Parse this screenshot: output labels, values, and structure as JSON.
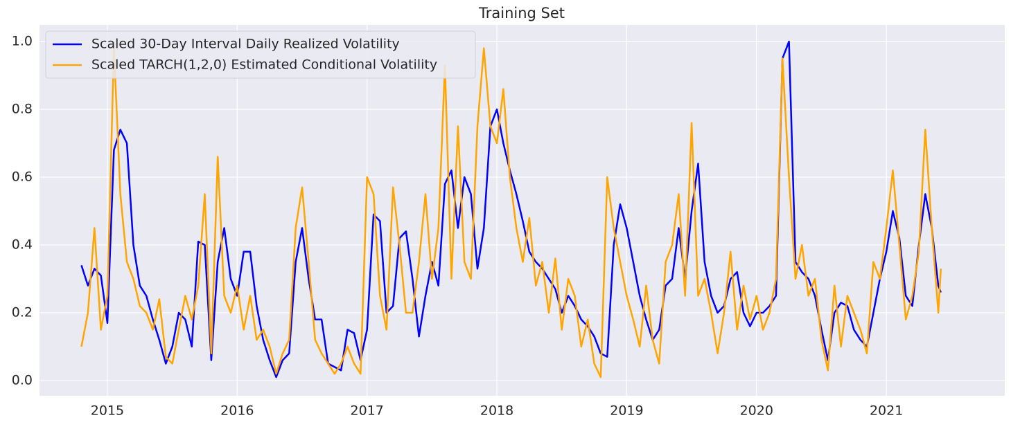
{
  "chart_data": {
    "type": "line",
    "title": "Training Set",
    "x": [
      2014.8,
      2014.85,
      2014.9,
      2014.95,
      2015.0,
      2015.05,
      2015.1,
      2015.15,
      2015.2,
      2015.25,
      2015.3,
      2015.35,
      2015.4,
      2015.45,
      2015.5,
      2015.55,
      2015.6,
      2015.65,
      2015.7,
      2015.75,
      2015.8,
      2015.85,
      2015.9,
      2015.95,
      2016.0,
      2016.05,
      2016.1,
      2016.15,
      2016.2,
      2016.25,
      2016.3,
      2016.35,
      2016.4,
      2016.45,
      2016.5,
      2016.55,
      2016.6,
      2016.65,
      2016.7,
      2016.75,
      2016.8,
      2016.85,
      2016.9,
      2016.95,
      2017.0,
      2017.05,
      2017.1,
      2017.15,
      2017.2,
      2017.25,
      2017.3,
      2017.35,
      2017.4,
      2017.45,
      2017.5,
      2017.55,
      2017.6,
      2017.65,
      2017.7,
      2017.75,
      2017.8,
      2017.85,
      2017.9,
      2017.95,
      2018.0,
      2018.05,
      2018.1,
      2018.15,
      2018.2,
      2018.25,
      2018.3,
      2018.35,
      2018.4,
      2018.45,
      2018.5,
      2018.55,
      2018.6,
      2018.65,
      2018.7,
      2018.75,
      2018.8,
      2018.85,
      2018.9,
      2018.95,
      2019.0,
      2019.05,
      2019.1,
      2019.15,
      2019.2,
      2019.25,
      2019.3,
      2019.35,
      2019.4,
      2019.45,
      2019.5,
      2019.55,
      2019.6,
      2019.65,
      2019.7,
      2019.75,
      2019.8,
      2019.85,
      2019.9,
      2019.95,
      2020.0,
      2020.05,
      2020.1,
      2020.15,
      2020.2,
      2020.25,
      2020.3,
      2020.35,
      2020.4,
      2020.45,
      2020.5,
      2020.55,
      2020.6,
      2020.65,
      2020.7,
      2020.75,
      2020.8,
      2020.85,
      2020.9,
      2020.95,
      2021.0,
      2021.05,
      2021.1,
      2021.15,
      2021.2,
      2021.25,
      2021.3,
      2021.35,
      2021.4,
      2021.42
    ],
    "series": [
      {
        "name": "Scaled 30-Day Interval Daily Realized Volatility",
        "color": "#0000ff",
        "values": [
          0.34,
          0.28,
          0.33,
          0.31,
          0.17,
          0.68,
          0.74,
          0.7,
          0.4,
          0.28,
          0.25,
          0.18,
          0.12,
          0.05,
          0.1,
          0.2,
          0.18,
          0.1,
          0.41,
          0.4,
          0.06,
          0.35,
          0.45,
          0.3,
          0.25,
          0.38,
          0.38,
          0.22,
          0.12,
          0.06,
          0.01,
          0.06,
          0.08,
          0.35,
          0.45,
          0.3,
          0.18,
          0.18,
          0.05,
          0.04,
          0.03,
          0.15,
          0.14,
          0.06,
          0.15,
          0.49,
          0.47,
          0.2,
          0.22,
          0.42,
          0.44,
          0.3,
          0.13,
          0.25,
          0.35,
          0.28,
          0.58,
          0.62,
          0.45,
          0.6,
          0.55,
          0.33,
          0.45,
          0.75,
          0.8,
          0.7,
          0.62,
          0.55,
          0.47,
          0.38,
          0.35,
          0.33,
          0.3,
          0.27,
          0.2,
          0.25,
          0.22,
          0.18,
          0.16,
          0.13,
          0.08,
          0.07,
          0.4,
          0.52,
          0.45,
          0.35,
          0.25,
          0.18,
          0.12,
          0.15,
          0.28,
          0.3,
          0.45,
          0.3,
          0.5,
          0.64,
          0.35,
          0.25,
          0.2,
          0.22,
          0.3,
          0.32,
          0.2,
          0.16,
          0.2,
          0.2,
          0.22,
          0.25,
          0.95,
          1.0,
          0.35,
          0.32,
          0.3,
          0.25,
          0.15,
          0.06,
          0.2,
          0.23,
          0.22,
          0.15,
          0.12,
          0.1,
          0.2,
          0.3,
          0.38,
          0.5,
          0.42,
          0.25,
          0.22,
          0.4,
          0.55,
          0.45,
          0.28,
          0.26
        ]
      },
      {
        "name": "Scaled TARCH(1,2,0) Estimated Conditional Volatility",
        "color": "#ffa500",
        "values": [
          0.1,
          0.2,
          0.45,
          0.15,
          0.25,
          0.98,
          0.55,
          0.35,
          0.3,
          0.22,
          0.2,
          0.15,
          0.24,
          0.07,
          0.05,
          0.15,
          0.25,
          0.18,
          0.28,
          0.55,
          0.08,
          0.66,
          0.25,
          0.2,
          0.28,
          0.15,
          0.25,
          0.12,
          0.15,
          0.1,
          0.02,
          0.08,
          0.12,
          0.45,
          0.57,
          0.35,
          0.12,
          0.08,
          0.05,
          0.02,
          0.05,
          0.1,
          0.05,
          0.02,
          0.6,
          0.55,
          0.25,
          0.15,
          0.57,
          0.4,
          0.2,
          0.2,
          0.35,
          0.55,
          0.3,
          0.45,
          0.93,
          0.3,
          0.75,
          0.35,
          0.3,
          0.75,
          0.98,
          0.75,
          0.7,
          0.86,
          0.6,
          0.45,
          0.35,
          0.48,
          0.28,
          0.35,
          0.2,
          0.36,
          0.15,
          0.3,
          0.25,
          0.1,
          0.18,
          0.05,
          0.01,
          0.6,
          0.45,
          0.35,
          0.25,
          0.18,
          0.1,
          0.28,
          0.12,
          0.05,
          0.35,
          0.4,
          0.55,
          0.25,
          0.76,
          0.25,
          0.3,
          0.2,
          0.08,
          0.2,
          0.38,
          0.15,
          0.28,
          0.18,
          0.25,
          0.15,
          0.2,
          0.3,
          0.95,
          0.6,
          0.3,
          0.4,
          0.25,
          0.3,
          0.12,
          0.03,
          0.28,
          0.1,
          0.25,
          0.2,
          0.15,
          0.08,
          0.35,
          0.3,
          0.45,
          0.62,
          0.4,
          0.18,
          0.25,
          0.38,
          0.74,
          0.45,
          0.2,
          0.33
        ]
      }
    ],
    "xlim": [
      2014.477,
      2021.912
    ],
    "xticks": [
      2015,
      2016,
      2017,
      2018,
      2019,
      2020,
      2021
    ],
    "ylim": [
      -0.045,
      1.049
    ],
    "yticks": [
      0.0,
      0.2,
      0.4,
      0.6,
      0.8,
      1.0
    ],
    "grid": true,
    "legend": "upper left"
  }
}
